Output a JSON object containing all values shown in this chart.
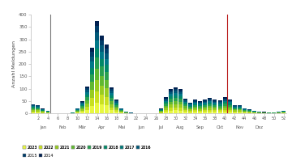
{
  "ylabel": "Anzahl Meldungen",
  "ylim": [
    0,
    400
  ],
  "yticks": [
    0,
    50,
    100,
    150,
    200,
    250,
    300,
    350,
    400
  ],
  "weeks": [
    1,
    2,
    3,
    4,
    5,
    6,
    7,
    8,
    9,
    10,
    11,
    12,
    13,
    14,
    15,
    16,
    17,
    18,
    19,
    20,
    21,
    22,
    23,
    24,
    25,
    26,
    27,
    28,
    29,
    30,
    31,
    32,
    33,
    34,
    35,
    36,
    37,
    38,
    39,
    40,
    41,
    42,
    43,
    44,
    45,
    46,
    47,
    48,
    49,
    50,
    51,
    52
  ],
  "vline_black_week": 5,
  "vline_red_week": 41,
  "years": [
    "2023",
    "2022",
    "2021",
    "2020",
    "2019",
    "2018",
    "2017",
    "2016",
    "2015",
    "2014"
  ],
  "colors": [
    "#e8f840",
    "#c8e020",
    "#98cc20",
    "#60b830",
    "#28a050",
    "#008868",
    "#007888",
    "#005878",
    "#003c68",
    "#002050"
  ],
  "legend_colors": [
    "#e8f840",
    "#c8e020",
    "#98cc20",
    "#60b830",
    "#28a050",
    "#008868",
    "#007878",
    "#005878",
    "#003c68",
    "#002050"
  ],
  "legend_years": [
    "2023",
    "2022",
    "2021",
    "2020",
    "2019",
    "2018",
    "2017",
    "2016",
    "2015",
    "2014"
  ],
  "totals": [
    38,
    35,
    20,
    12,
    2,
    2,
    2,
    2,
    4,
    22,
    50,
    110,
    265,
    375,
    315,
    280,
    105,
    57,
    22,
    8,
    3,
    1,
    1,
    1,
    1,
    1,
    20,
    65,
    100,
    105,
    100,
    60,
    45,
    55,
    50,
    55,
    62,
    55,
    52,
    65,
    58,
    35,
    35,
    22,
    18,
    12,
    8,
    6,
    5,
    5,
    8,
    12
  ]
}
